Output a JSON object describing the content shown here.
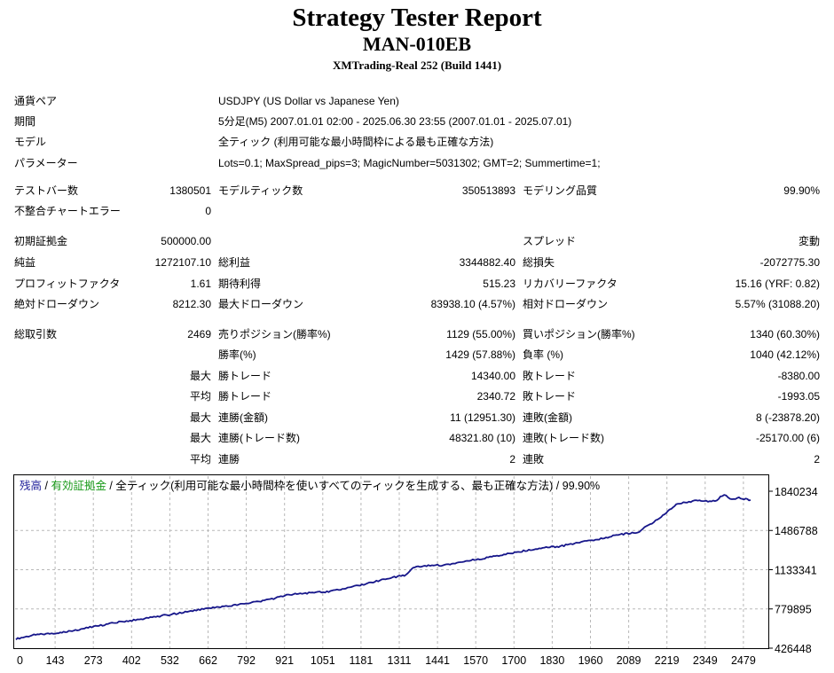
{
  "header": {
    "title": "Strategy Tester Report",
    "ea_name": "MAN-010EB",
    "server": "XMTrading-Real 252 (Build 1441)"
  },
  "info": {
    "pair_label": "通貨ペア",
    "pair_value": "USDJPY (US Dollar vs Japanese Yen)",
    "period_label": "期間",
    "period_value": "5分足(M5) 2007.01.01 02:00 - 2025.06.30 23:55 (2007.01.01 - 2025.07.01)",
    "model_label": "モデル",
    "model_value": "全ティック (利用可能な最小時間枠による最も正確な方法)",
    "params_label": "パラメーター",
    "params_value": "Lots=0.1; MaxSpread_pips=3; MagicNumber=5031302; GMT=2; Summertime=1;"
  },
  "stats": {
    "test_bars_label": "テストバー数",
    "test_bars": "1380501",
    "model_ticks_label": "モデルティック数",
    "model_ticks": "350513893",
    "model_quality_label": "モデリング品質",
    "model_quality": "99.90%",
    "mismatch_label": "不整合チャートエラー",
    "mismatch": "0",
    "initial_deposit_label": "初期証拠金",
    "initial_deposit": "500000.00",
    "spread_label": "スプレッド",
    "spread": "変動",
    "net_profit_label": "純益",
    "net_profit": "1272107.10",
    "gross_profit_label": "総利益",
    "gross_profit": "3344882.40",
    "gross_loss_label": "総損失",
    "gross_loss": "-2072775.30",
    "profit_factor_label": "プロフィットファクタ",
    "profit_factor": "1.61",
    "expected_payoff_label": "期待利得",
    "expected_payoff": "515.23",
    "recovery_factor_label": "リカバリーファクタ",
    "recovery_factor": "15.16 (YRF: 0.82)",
    "abs_dd_label": "絶対ドローダウン",
    "abs_dd": "8212.30",
    "max_dd_label": "最大ドローダウン",
    "max_dd": "83938.10 (4.57%)",
    "rel_dd_label": "相対ドローダウン",
    "rel_dd": "5.57% (31088.20)",
    "total_trades_label": "総取引数",
    "total_trades": "2469",
    "short_label": "売りポジション(勝率%)",
    "short": "1129 (55.00%)",
    "long_label": "買いポジション(勝率%)",
    "long": "1340 (60.30%)",
    "win_rate_label": "勝率(%)",
    "win_rate": "1429 (57.88%)",
    "loss_rate_label": "負率 (%)",
    "loss_rate": "1040 (42.12%)",
    "max_label": "最大",
    "avg_label": "平均",
    "largest_win_label": "勝トレード",
    "largest_win": "14340.00",
    "largest_loss_label": "敗トレード",
    "largest_loss": "-8380.00",
    "avg_win_label": "勝トレード",
    "avg_win": "2340.72",
    "avg_loss_label": "敗トレード",
    "avg_loss": "-1993.05",
    "max_consec_wins_label": "連勝(金額)",
    "max_consec_wins": "11 (12951.30)",
    "max_consec_losses_label": "連敗(金額)",
    "max_consec_losses": "8 (-23878.20)",
    "max_consec_profit_label": "連勝(トレード数)",
    "max_consec_profit": "48321.80 (10)",
    "max_consec_loss_label": "連敗(トレード数)",
    "max_consec_loss": "-25170.00 (6)",
    "avg_consec_wins_label": "連勝",
    "avg_consec_wins": "2",
    "avg_consec_losses_label": "連敗",
    "avg_consec_losses": "2"
  },
  "chart_legend": {
    "balance": "残高",
    "sep1": " / ",
    "equity": "有効証拠金",
    "rest": " / 全ティック(利用可能な最小時間枠を使いすべてのティックを生成する、最も正確な方法) / 99.90%",
    "balance_color": "#1f1f9a",
    "equity_color": "#1a9a1a"
  },
  "chart_data": {
    "type": "line",
    "x_ticks": [
      "0",
      "143",
      "273",
      "402",
      "532",
      "662",
      "792",
      "921",
      "1051",
      "1181",
      "1311",
      "1441",
      "1570",
      "1700",
      "1830",
      "1960",
      "2089",
      "2219",
      "2349",
      "2479"
    ],
    "y_ticks": [
      "1840234",
      "1486788",
      "1133341",
      "779895",
      "426448"
    ],
    "ylim": [
      426448,
      1840234
    ],
    "xlim": [
      0,
      2469
    ],
    "grid": true,
    "line_color": "#16168a",
    "series": [
      {
        "x": [
          0,
          60,
          143,
          200,
          273,
          340,
          402,
          470,
          532,
          600,
          662,
          700,
          792,
          860,
          921,
          990,
          1051,
          1120,
          1181,
          1260,
          1311,
          1340,
          1380,
          1441,
          1500,
          1570,
          1640,
          1700,
          1770,
          1830,
          1900,
          1960,
          2030,
          2089,
          2150,
          2180,
          2219,
          2280,
          2349,
          2380,
          2400,
          2430,
          2469
        ],
        "y": [
          510000,
          545000,
          565000,
          590000,
          625000,
          660000,
          680000,
          710000,
          735000,
          765000,
          790000,
          800000,
          835000,
          870000,
          910000,
          925000,
          935000,
          970000,
          1010000,
          1060000,
          1085000,
          1160000,
          1170000,
          1175000,
          1205000,
          1235000,
          1270000,
          1300000,
          1330000,
          1345000,
          1380000,
          1410000,
          1450000,
          1470000,
          1575000,
          1635000,
          1720000,
          1755000,
          1750000,
          1810000,
          1770000,
          1780000,
          1760000
        ]
      }
    ]
  }
}
